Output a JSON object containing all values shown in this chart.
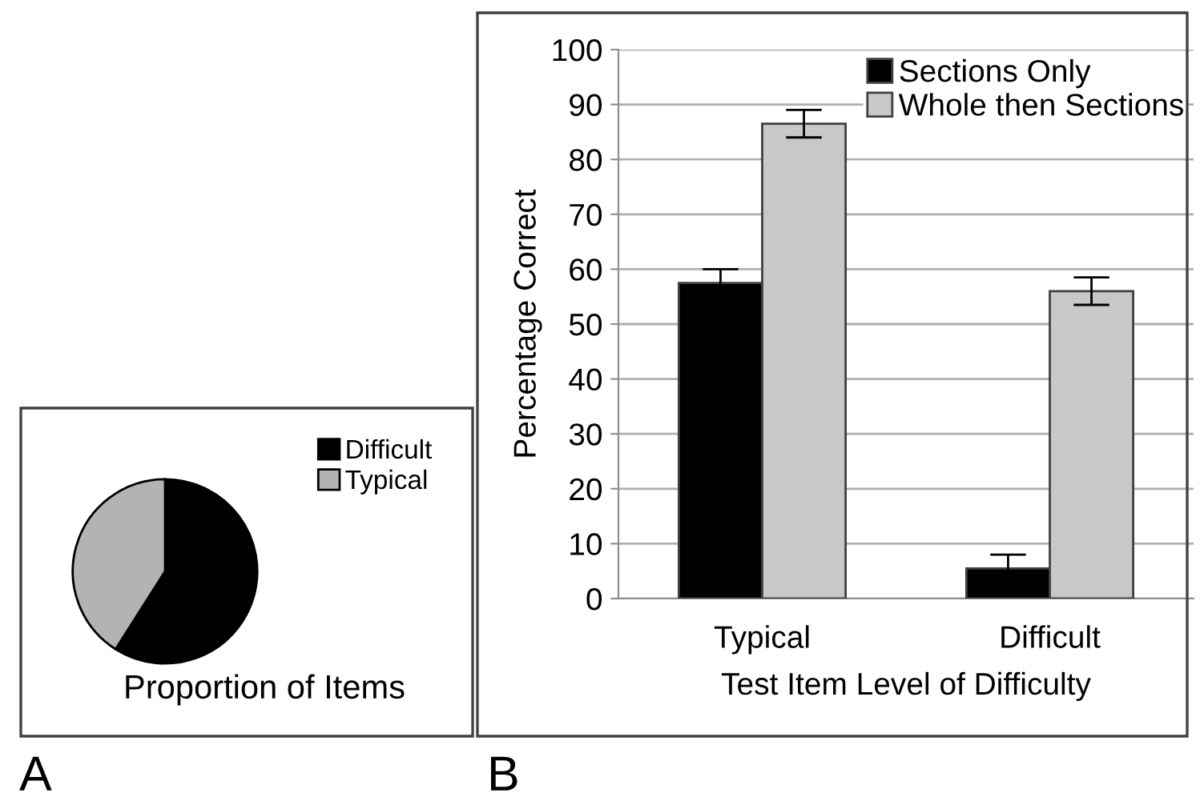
{
  "chart_data": [
    {
      "type": "pie",
      "title": "Proportion of Items",
      "categories": [
        "Difficult",
        "Typical"
      ],
      "values": [
        59,
        41
      ],
      "colors": [
        "#000000",
        "#b3b3b3"
      ],
      "legend": "top right",
      "annotations": [
        "A"
      ]
    },
    {
      "type": "bar",
      "categories": [
        "Typical",
        "Difficult"
      ],
      "xlabel": "Test Item Level of Difficulty",
      "ylabel": "Percentage Correct",
      "series": [
        {
          "name": "Sections Only",
          "color": "#000000",
          "values": [
            57.5,
            5.5
          ],
          "errors": [
            2.5,
            2.5
          ]
        },
        {
          "name": "Whole then Sections",
          "color": "#c8c8c8",
          "values": [
            86.5,
            56
          ],
          "errors": [
            2.5,
            2.5
          ]
        }
      ],
      "ylim": [
        0,
        100
      ],
      "yticks": [
        0,
        10,
        20,
        30,
        40,
        50,
        60,
        70,
        80,
        90,
        100
      ],
      "grid": "y",
      "legend": "top right",
      "annotations": [
        "B"
      ]
    }
  ]
}
